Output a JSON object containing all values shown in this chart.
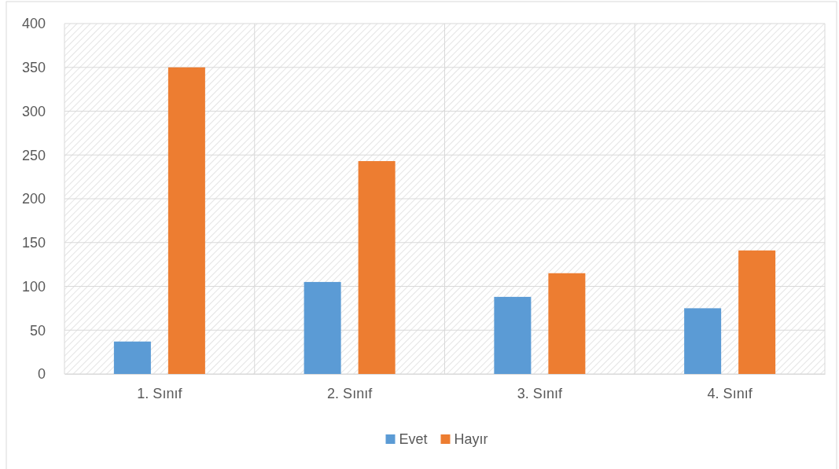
{
  "chart_data": {
    "type": "bar",
    "categories": [
      "1. Sınıf",
      "2. Sınıf",
      "3. Sınıf",
      "4. Sınıf"
    ],
    "series": [
      {
        "name": "Evet",
        "color": "#5b9bd5",
        "values": [
          37,
          105,
          88,
          75
        ]
      },
      {
        "name": "Hayır",
        "color": "#ed7d31",
        "values": [
          350,
          243,
          115,
          141
        ]
      }
    ],
    "ylim": [
      0,
      400
    ],
    "yticks": [
      0,
      50,
      100,
      150,
      200,
      250,
      300,
      350,
      400
    ],
    "grid": true,
    "legend": "bottom"
  }
}
